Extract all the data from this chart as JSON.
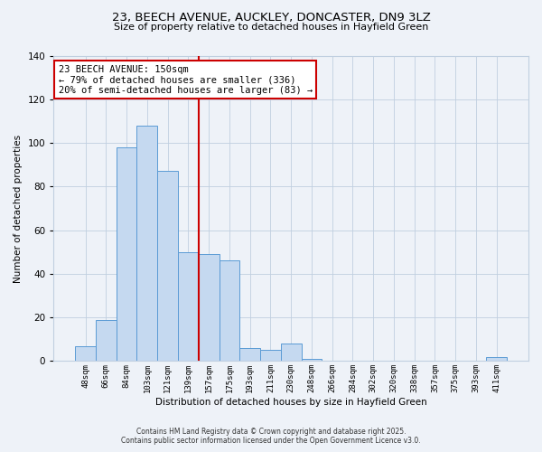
{
  "title_line1": "23, BEECH AVENUE, AUCKLEY, DONCASTER, DN9 3LZ",
  "title_line2": "Size of property relative to detached houses in Hayfield Green",
  "xlabel": "Distribution of detached houses by size in Hayfield Green",
  "ylabel": "Number of detached properties",
  "bar_labels": [
    "48sqm",
    "66sqm",
    "84sqm",
    "103sqm",
    "121sqm",
    "139sqm",
    "157sqm",
    "175sqm",
    "193sqm",
    "211sqm",
    "230sqm",
    "248sqm",
    "266sqm",
    "284sqm",
    "302sqm",
    "320sqm",
    "338sqm",
    "357sqm",
    "375sqm",
    "393sqm",
    "411sqm"
  ],
  "bar_heights": [
    7,
    19,
    98,
    108,
    87,
    50,
    49,
    46,
    6,
    5,
    8,
    1,
    0,
    0,
    0,
    0,
    0,
    0,
    0,
    0,
    2
  ],
  "bar_color": "#c5d9f0",
  "bar_edge_color": "#5b9bd5",
  "vline_x": 5.5,
  "vline_color": "#cc0000",
  "ylim": [
    0,
    140
  ],
  "yticks": [
    0,
    20,
    40,
    60,
    80,
    100,
    120,
    140
  ],
  "annotation_title": "23 BEECH AVENUE: 150sqm",
  "annotation_line1": "← 79% of detached houses are smaller (336)",
  "annotation_line2": "20% of semi-detached houses are larger (83) →",
  "annotation_box_color": "#ffffff",
  "annotation_box_edge": "#cc0000",
  "footer_line1": "Contains HM Land Registry data © Crown copyright and database right 2025.",
  "footer_line2": "Contains public sector information licensed under the Open Government Licence v3.0.",
  "background_color": "#eef2f8",
  "grid_color": "#c0cfe0"
}
